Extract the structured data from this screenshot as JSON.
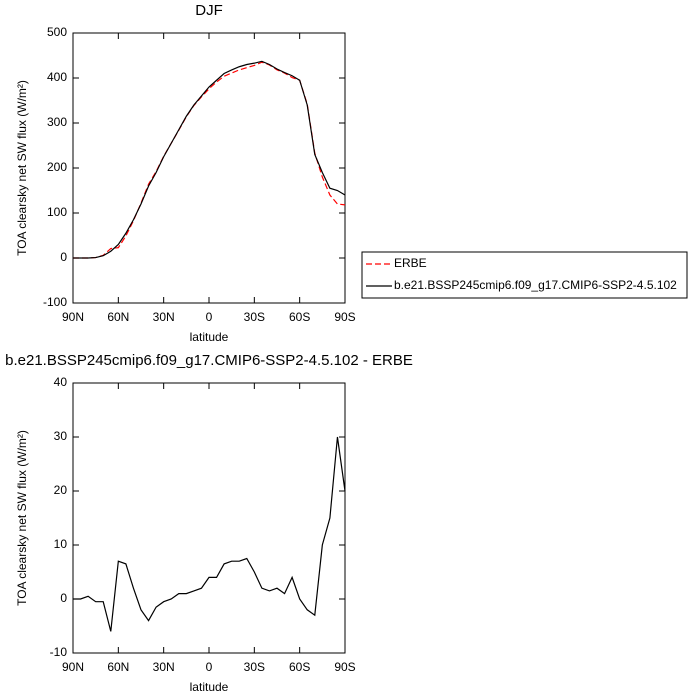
{
  "chart_data": [
    {
      "type": "line",
      "title": "DJF",
      "xlabel": "latitude",
      "ylabel": "TOA clearsky net SW flux (W/m²)",
      "x": [
        90,
        85,
        80,
        75,
        70,
        65,
        60,
        55,
        50,
        45,
        40,
        35,
        30,
        25,
        20,
        15,
        10,
        5,
        0,
        -5,
        -10,
        -15,
        -20,
        -25,
        -30,
        -35,
        -40,
        -45,
        -50,
        -55,
        -60,
        -65,
        -70,
        -75,
        -80,
        -85,
        -90
      ],
      "xlim": [
        90,
        -90
      ],
      "xticks": [
        {
          "value": 90,
          "label": "90N"
        },
        {
          "value": 60,
          "label": "60N"
        },
        {
          "value": 30,
          "label": "30N"
        },
        0,
        {
          "value": -30,
          "label": "30S"
        },
        {
          "value": -60,
          "label": "60S"
        },
        {
          "value": -90,
          "label": "90S"
        }
      ],
      "ylim": [
        -100,
        500
      ],
      "yticks": [
        -100,
        0,
        100,
        200,
        300,
        400,
        500
      ],
      "legend": "outside-right",
      "series": [
        {
          "name": "ERBE",
          "color": "#ff0000",
          "style": "dashed",
          "values": [
            0,
            0,
            0,
            1,
            6,
            21,
            23,
            49,
            83,
            122,
            164,
            192,
            226,
            255,
            284,
            314,
            339,
            358,
            376,
            391,
            404,
            411,
            418,
            423,
            428,
            435,
            429,
            418,
            411,
            401,
            395,
            342,
            233,
            180,
            140,
            120,
            118
          ]
        },
        {
          "name": "b.e21.BSSP245cmip6.f09_g17.CMIP6-SSP2-4.5.102",
          "color": "#000000",
          "style": "solid",
          "values": [
            0,
            0,
            0,
            1,
            5,
            15,
            30,
            55,
            85,
            120,
            160,
            190,
            225,
            255,
            285,
            315,
            340,
            360,
            380,
            395,
            410,
            418,
            425,
            430,
            433,
            437,
            430,
            420,
            412,
            405,
            395,
            340,
            230,
            190,
            155,
            150,
            140
          ]
        }
      ]
    },
    {
      "type": "line",
      "title": "b.e21.BSSP245cmip6.f09_g17.CMIP6-SSP2-4.5.102 - ERBE",
      "xlabel": "latitude",
      "ylabel": "TOA clearsky net SW flux (W/m²)",
      "x": [
        90,
        85,
        80,
        75,
        70,
        65,
        60,
        55,
        50,
        45,
        40,
        35,
        30,
        25,
        20,
        15,
        10,
        5,
        0,
        -5,
        -10,
        -15,
        -20,
        -25,
        -30,
        -35,
        -40,
        -45,
        -50,
        -55,
        -60,
        -65,
        -70,
        -75,
        -80,
        -85,
        -90
      ],
      "xlim": [
        90,
        -90
      ],
      "xticks": [
        {
          "value": 90,
          "label": "90N"
        },
        {
          "value": 60,
          "label": "60N"
        },
        {
          "value": 30,
          "label": "30N"
        },
        0,
        {
          "value": -30,
          "label": "30S"
        },
        {
          "value": -60,
          "label": "60S"
        },
        {
          "value": -90,
          "label": "90S"
        }
      ],
      "ylim": [
        -10,
        40
      ],
      "yticks": [
        -10,
        0,
        10,
        20,
        30,
        40
      ],
      "series": [
        {
          "color": "#000000",
          "style": "solid",
          "values": [
            0,
            0,
            0.5,
            -0.5,
            -0.5,
            -6,
            7,
            6.5,
            2,
            -2,
            -4,
            -1.5,
            -0.5,
            0,
            1,
            1,
            1.5,
            2,
            4,
            4,
            6.5,
            7,
            7,
            7.5,
            5,
            2,
            1.5,
            2,
            1,
            4,
            0,
            -2,
            -3,
            10,
            15,
            30,
            20
          ]
        }
      ]
    }
  ]
}
